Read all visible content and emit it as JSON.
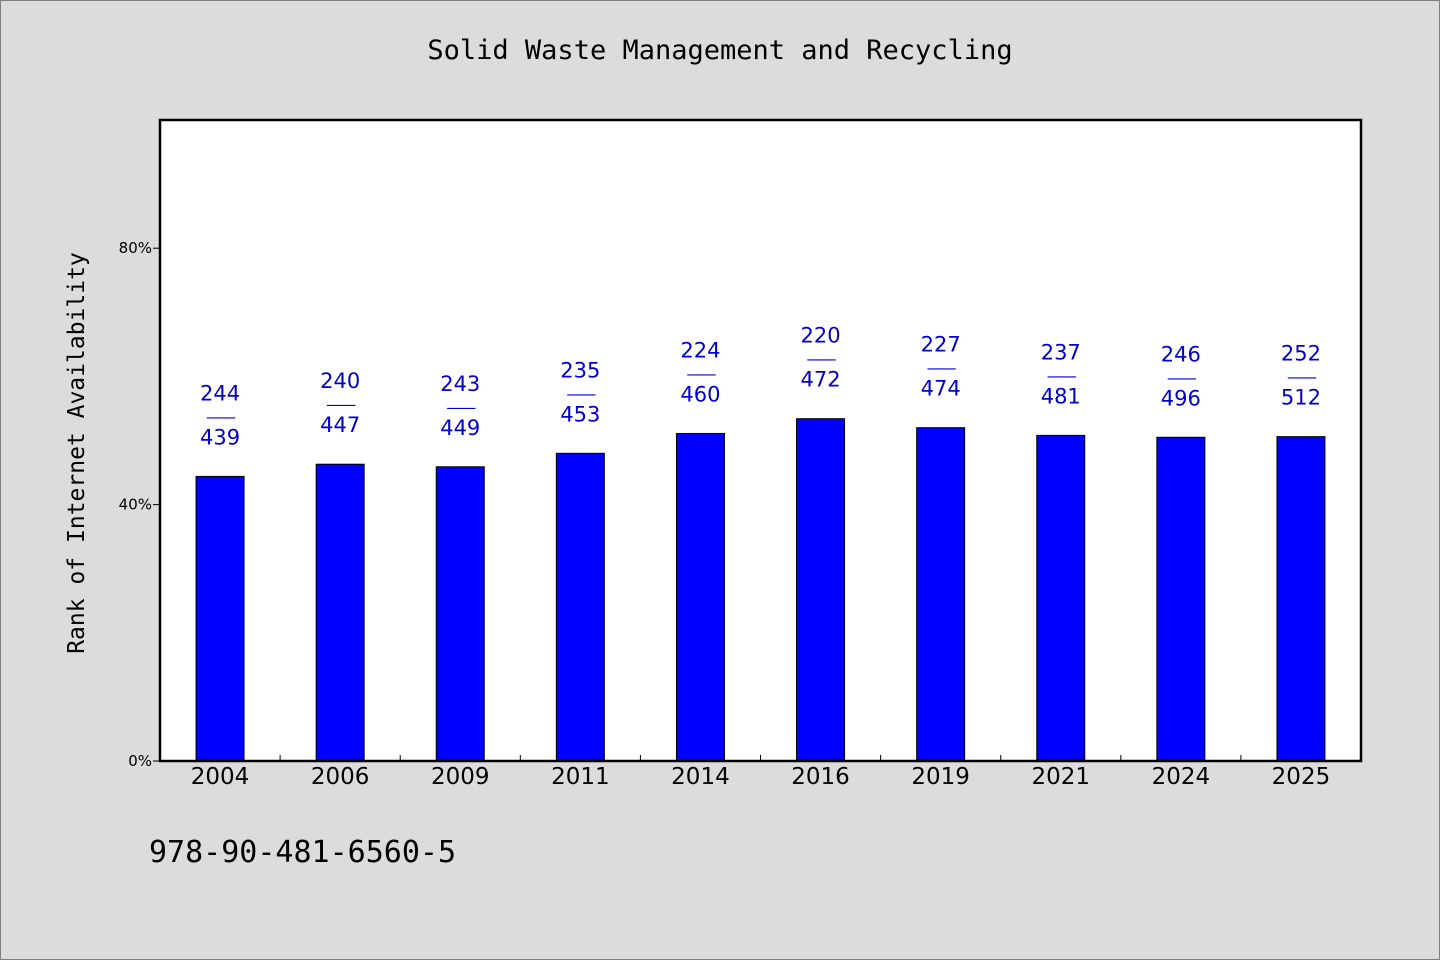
{
  "page": {
    "title": "Solid Waste Management and Recycling",
    "footer_text": "978-90-481-6560-5"
  },
  "colors": {
    "background": "#dcdcdc",
    "plot_background": "#ffffff",
    "bar": "#0000ff",
    "label": "#0000cc",
    "text": "#000000"
  },
  "chart_data": {
    "type": "bar",
    "title": "Solid Waste Management and Recycling",
    "xlabel": "",
    "ylabel": "Rank of Internet Availability",
    "ylim": [
      0,
      100
    ],
    "y_ticks": [
      0,
      40,
      80
    ],
    "y_tick_labels": [
      "0%",
      "40%",
      "80%"
    ],
    "grid": false,
    "categories": [
      "2004",
      "2006",
      "2009",
      "2011",
      "2014",
      "2016",
      "2019",
      "2021",
      "2024",
      "2025"
    ],
    "values": [
      44.4,
      46.3,
      45.9,
      48.0,
      51.1,
      53.4,
      52.0,
      50.8,
      50.5,
      50.6
    ],
    "rank_top": [
      "244",
      "240",
      "243",
      "235",
      "224",
      "220",
      "227",
      "237",
      "246",
      "252"
    ],
    "rank_bottom": [
      "439",
      "447",
      "449",
      "453",
      "460",
      "472",
      "474",
      "481",
      "496",
      "512"
    ],
    "label_separator": "——"
  }
}
